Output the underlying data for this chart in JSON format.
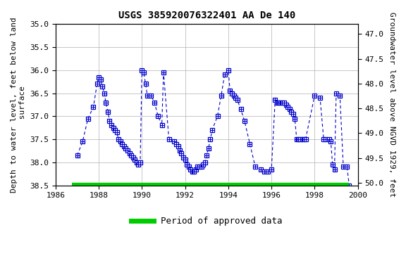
{
  "title": "USGS 385920076322401 AA De 140",
  "ylabel_left": "Depth to water level, feet below land\n surface",
  "ylabel_right": "Groundwater level above NGVD 1929, feet",
  "xlim": [
    1986,
    2000
  ],
  "ylim_left": [
    38.5,
    35.0
  ],
  "yticks_left": [
    35.0,
    35.5,
    36.0,
    36.5,
    37.0,
    37.5,
    38.0,
    38.5
  ],
  "yticks_right": [
    50.0,
    49.5,
    49.0,
    48.5,
    48.0,
    47.5,
    47.0
  ],
  "xticks": [
    1986,
    1988,
    1990,
    1992,
    1994,
    1996,
    1998,
    2000
  ],
  "line_color": "#0000cc",
  "approved_color": "#00cc00",
  "approved_start": 1986.75,
  "approved_end": 1999.6,
  "data_x": [
    1987.0,
    1987.25,
    1987.5,
    1987.75,
    1987.92,
    1988.0,
    1988.08,
    1988.17,
    1988.25,
    1988.33,
    1988.42,
    1988.5,
    1988.58,
    1988.67,
    1988.75,
    1988.83,
    1988.92,
    1989.0,
    1989.08,
    1989.17,
    1989.25,
    1989.33,
    1989.42,
    1989.5,
    1989.58,
    1989.67,
    1989.75,
    1989.83,
    1989.92,
    1990.0,
    1990.08,
    1990.17,
    1990.25,
    1990.42,
    1990.58,
    1990.75,
    1990.92,
    1991.0,
    1991.25,
    1991.5,
    1991.58,
    1991.67,
    1991.75,
    1991.83,
    1991.92,
    1992.0,
    1992.08,
    1992.17,
    1992.25,
    1992.33,
    1992.42,
    1992.5,
    1992.58,
    1992.67,
    1992.75,
    1992.83,
    1992.92,
    1993.0,
    1993.08,
    1993.17,
    1993.25,
    1993.5,
    1993.67,
    1993.83,
    1994.0,
    1994.08,
    1994.17,
    1994.25,
    1994.33,
    1994.42,
    1994.58,
    1994.75,
    1995.0,
    1995.25,
    1995.5,
    1995.67,
    1995.83,
    1996.0,
    1996.17,
    1996.25,
    1996.33,
    1996.42,
    1996.5,
    1996.58,
    1996.67,
    1996.75,
    1996.83,
    1996.92,
    1997.0,
    1997.08,
    1997.17,
    1997.25,
    1997.33,
    1997.42,
    1997.5,
    1997.58,
    1998.0,
    1998.25,
    1998.42,
    1998.5,
    1998.67,
    1998.75,
    1998.83,
    1998.92,
    1999.0,
    1999.17,
    1999.33,
    1999.5,
    1999.6
  ],
  "data_y": [
    37.85,
    37.55,
    37.05,
    36.8,
    36.3,
    36.15,
    36.2,
    36.35,
    36.5,
    36.7,
    36.9,
    37.1,
    37.2,
    37.25,
    37.3,
    37.35,
    37.5,
    37.55,
    37.6,
    37.65,
    37.7,
    37.75,
    37.8,
    37.85,
    37.9,
    37.95,
    38.0,
    38.05,
    38.0,
    36.0,
    36.05,
    36.3,
    36.55,
    36.55,
    36.7,
    37.0,
    37.2,
    36.05,
    37.5,
    37.55,
    37.6,
    37.65,
    37.75,
    37.8,
    37.9,
    37.95,
    38.05,
    38.1,
    38.15,
    38.2,
    38.2,
    38.15,
    38.1,
    38.1,
    38.1,
    38.05,
    38.0,
    37.85,
    37.7,
    37.5,
    37.3,
    37.0,
    36.55,
    36.1,
    36.0,
    36.45,
    36.5,
    36.55,
    36.6,
    36.65,
    36.85,
    37.1,
    37.6,
    38.1,
    38.15,
    38.2,
    38.2,
    38.15,
    36.65,
    36.7,
    36.7,
    36.7,
    36.7,
    36.7,
    36.75,
    36.8,
    36.85,
    36.9,
    36.95,
    37.05,
    37.5,
    37.5,
    37.5,
    37.5,
    37.5,
    37.5,
    36.55,
    36.6,
    37.5,
    37.5,
    37.5,
    37.55,
    38.05,
    38.15,
    36.5,
    36.55,
    38.1,
    38.1,
    38.5
  ]
}
